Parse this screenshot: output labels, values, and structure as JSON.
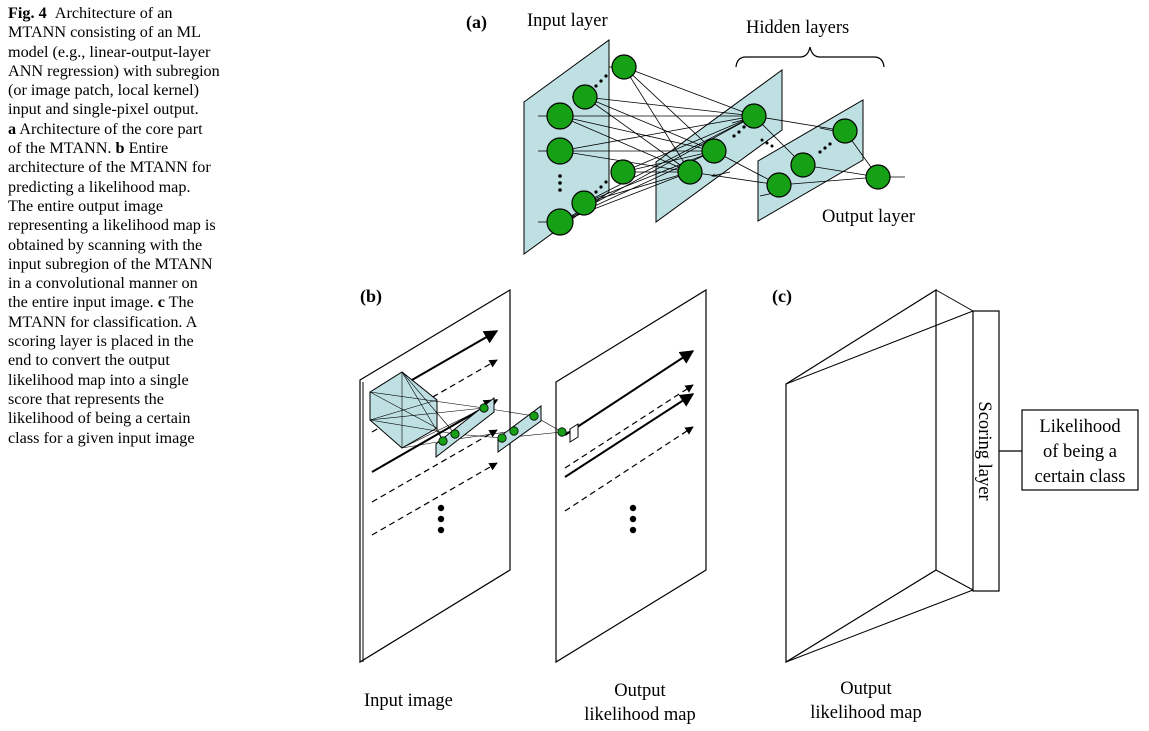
{
  "caption": {
    "fig_label": "Fig. 4",
    "line1": "Architecture of an",
    "lines": [
      "MTANN consisting of an ML",
      "model (e.g., linear-output-layer",
      "ANN regression) with subregion",
      "(or image patch, local kernel)",
      "input and single-pixel output."
    ],
    "a_bold": "a",
    "a_text": "Architecture of the core part",
    "a_line2_pre": "of the MTANN.",
    "b_bold": "b",
    "b_text": "Entire",
    "lines_b": [
      "architecture of the MTANN for",
      "predicting a likelihood map.",
      "The entire output image",
      "representing a likelihood map is",
      "obtained by scanning with the",
      "input subregion of the MTANN",
      "in a convolutional manner on"
    ],
    "c_line_pre": "the entire input image.",
    "c_bold": "c",
    "c_text": "The",
    "lines_c": [
      "MTANN for classification. A",
      "scoring layer is placed in the",
      "end to convert the output",
      "likelihood map into a single",
      "score that represents the",
      "likelihood of being a certain",
      "class for a given input image"
    ]
  },
  "panel_a": {
    "tag": "(a)",
    "input_layer": "Input layer",
    "hidden_layers": "Hidden layers",
    "output_layer": "Output layer"
  },
  "panel_b": {
    "tag": "(b)",
    "input_image": "Input image",
    "output_map_line1": "Output",
    "output_map_line2": "likelihood map"
  },
  "panel_c": {
    "tag": "(c)",
    "output_map_line1": "Output",
    "output_map_line2": "likelihood map",
    "scoring_layer": "Scoring layer",
    "result_line1": "Likelihood",
    "result_line2": "of being a",
    "result_line3": "certain class"
  },
  "colors": {
    "node_fill": "#16a016",
    "layer_fill": "#bfe0e2",
    "stroke": "#000000"
  }
}
